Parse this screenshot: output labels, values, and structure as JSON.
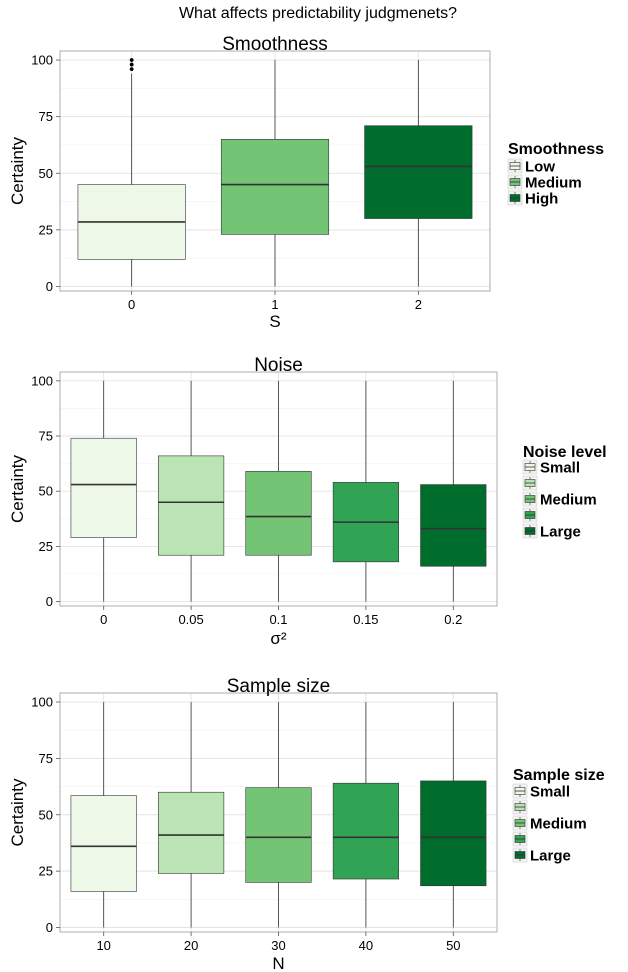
{
  "figure_title": "What affects predictability judgmenets?",
  "colors": {
    "c1": "#edf8e9",
    "c2": "#bae4b3",
    "c3": "#74c476",
    "c4": "#31a354",
    "c5": "#006d2c"
  },
  "chart_data": [
    {
      "type": "boxplot",
      "title": "Smoothness",
      "xlabel": "S",
      "ylabel": "Certainty",
      "ylim": [
        -2,
        104
      ],
      "yticks": [
        0,
        25,
        50,
        75,
        100
      ],
      "grid": true,
      "legend": {
        "title": "Smoothness",
        "placement": "right",
        "entries": [
          {
            "label": "Low",
            "color": "#edf8e9"
          },
          {
            "label": "Medium",
            "color": "#74c476"
          },
          {
            "label": "High",
            "color": "#006d2c"
          }
        ]
      },
      "categories": [
        "0",
        "1",
        "2"
      ],
      "boxes": [
        {
          "category": "0",
          "min": 0,
          "q1": 12,
          "median": 28.5,
          "q3": 45,
          "max": 94,
          "outliers": [
            96,
            98,
            100
          ],
          "color": "#edf8e9"
        },
        {
          "category": "1",
          "min": 0,
          "q1": 23,
          "median": 45,
          "q3": 65,
          "max": 100,
          "outliers": [],
          "color": "#74c476"
        },
        {
          "category": "2",
          "min": 0,
          "q1": 30,
          "median": 53,
          "q3": 71,
          "max": 100,
          "outliers": [],
          "color": "#006d2c"
        }
      ]
    },
    {
      "type": "boxplot",
      "title": "Noise",
      "xlabel": "σ²",
      "ylabel": "Certainty",
      "ylim": [
        -2,
        104
      ],
      "yticks": [
        0,
        25,
        50,
        75,
        100
      ],
      "grid": true,
      "legend": {
        "title": "Noise level",
        "placement": "right",
        "entries": [
          {
            "label": "Small",
            "color": "#edf8e9"
          },
          {
            "label": "",
            "color": "#bae4b3"
          },
          {
            "label": "Medium",
            "color": "#74c476"
          },
          {
            "label": "",
            "color": "#31a354"
          },
          {
            "label": "Large",
            "color": "#006d2c"
          }
        ]
      },
      "categories": [
        "0",
        "0.05",
        "0.1",
        "0.15",
        "0.2"
      ],
      "boxes": [
        {
          "category": "0",
          "min": 0,
          "q1": 29,
          "median": 53,
          "q3": 74,
          "max": 100,
          "outliers": [],
          "color": "#edf8e9"
        },
        {
          "category": "0.05",
          "min": 0,
          "q1": 21,
          "median": 45,
          "q3": 66,
          "max": 100,
          "outliers": [],
          "color": "#bae4b3"
        },
        {
          "category": "0.1",
          "min": 0,
          "q1": 21,
          "median": 38.5,
          "q3": 59,
          "max": 100,
          "outliers": [],
          "color": "#74c476"
        },
        {
          "category": "0.15",
          "min": 0,
          "q1": 18,
          "median": 36,
          "q3": 54,
          "max": 100,
          "outliers": [],
          "color": "#31a354"
        },
        {
          "category": "0.2",
          "min": 0,
          "q1": 16,
          "median": 33,
          "q3": 53,
          "max": 100,
          "outliers": [],
          "color": "#006d2c"
        }
      ]
    },
    {
      "type": "boxplot",
      "title": "Sample size",
      "xlabel": "N",
      "ylabel": "Certainty",
      "ylim": [
        -2,
        104
      ],
      "yticks": [
        0,
        25,
        50,
        75,
        100
      ],
      "grid": true,
      "legend": {
        "title": "Sample size",
        "placement": "right",
        "entries": [
          {
            "label": "Small",
            "color": "#edf8e9"
          },
          {
            "label": "",
            "color": "#bae4b3"
          },
          {
            "label": "Medium",
            "color": "#74c476"
          },
          {
            "label": "",
            "color": "#31a354"
          },
          {
            "label": "Large",
            "color": "#006d2c"
          }
        ]
      },
      "categories": [
        "10",
        "20",
        "30",
        "40",
        "50"
      ],
      "boxes": [
        {
          "category": "10",
          "min": 0,
          "q1": 16,
          "median": 36,
          "q3": 58.5,
          "max": 100,
          "outliers": [],
          "color": "#edf8e9"
        },
        {
          "category": "20",
          "min": 0,
          "q1": 24,
          "median": 41,
          "q3": 60,
          "max": 100,
          "outliers": [],
          "color": "#bae4b3"
        },
        {
          "category": "30",
          "min": 0,
          "q1": 20,
          "median": 40,
          "q3": 62,
          "max": 100,
          "outliers": [],
          "color": "#74c476"
        },
        {
          "category": "40",
          "min": 0,
          "q1": 21.5,
          "median": 40,
          "q3": 64,
          "max": 100,
          "outliers": [],
          "color": "#31a354"
        },
        {
          "category": "50",
          "min": 0,
          "q1": 18.5,
          "median": 40,
          "q3": 65,
          "max": 100,
          "outliers": [],
          "color": "#006d2c"
        }
      ]
    }
  ]
}
